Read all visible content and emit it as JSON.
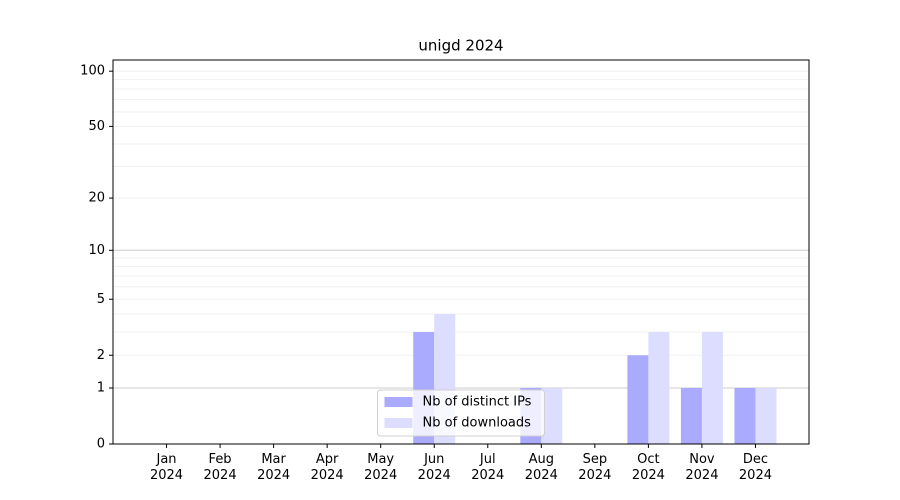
{
  "chart_data": {
    "type": "bar",
    "title": "unigd 2024",
    "categories": [
      "Jan 2024",
      "Feb 2024",
      "Mar 2024",
      "Apr 2024",
      "May 2024",
      "Jun 2024",
      "Jul 2024",
      "Aug 2024",
      "Sep 2024",
      "Oct 2024",
      "Nov 2024",
      "Dec 2024"
    ],
    "series": [
      {
        "name": "Nb of distinct IPs",
        "color": "#aaaaff",
        "values": [
          0,
          0,
          0,
          0,
          0,
          3,
          0,
          1,
          0,
          2,
          1,
          1
        ]
      },
      {
        "name": "Nb of downloads",
        "color": "#ddddff",
        "values": [
          0,
          0,
          0,
          0,
          0,
          4,
          0,
          1,
          0,
          3,
          3,
          1
        ]
      }
    ],
    "yscale": "log1p",
    "ylim": [
      0,
      115
    ],
    "yticks": [
      0,
      1,
      2,
      5,
      10,
      20,
      50,
      100
    ],
    "grid_major": [
      1,
      10
    ],
    "grid_minor": [
      2,
      3,
      4,
      5,
      6,
      7,
      8,
      9,
      20,
      30,
      40,
      50,
      60,
      70,
      80,
      90,
      100
    ],
    "legend": "lower center"
  }
}
